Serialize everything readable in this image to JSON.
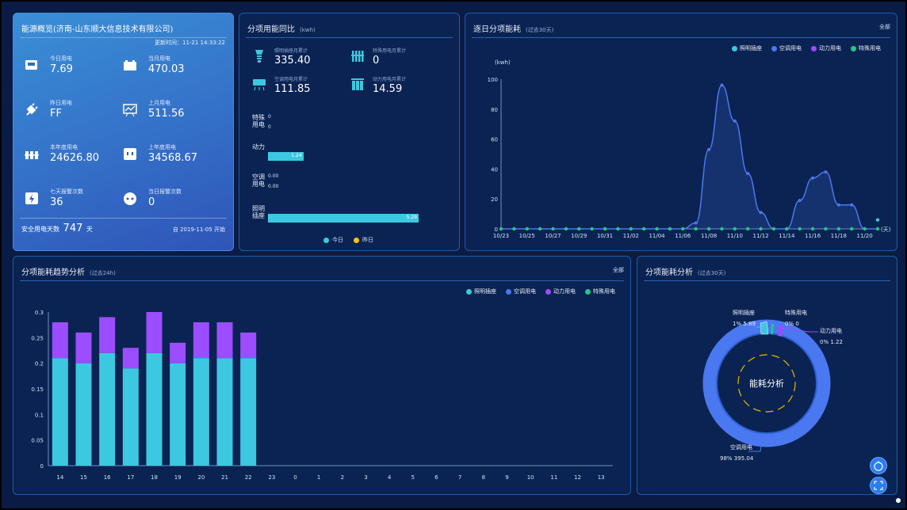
{
  "overview": {
    "title": "能源概览(济南-山东顺大信息技术有限公司)",
    "updated": "更新时间：11-21 14:33:22",
    "kpis": [
      {
        "label": "今日用电",
        "value": "7.69",
        "icon": "meter-icon"
      },
      {
        "label": "当月用电",
        "value": "470.03",
        "icon": "battery-icon"
      },
      {
        "label": "昨日用电",
        "value": "FF",
        "icon": "plug-icon"
      },
      {
        "label": "上月用电",
        "value": "511.56",
        "icon": "chart-board-icon"
      },
      {
        "label": "本年度用电",
        "value": "24626.80",
        "icon": "power-group-icon"
      },
      {
        "label": "上年度用电",
        "value": "34568.67",
        "icon": "socket-icon"
      },
      {
        "label": "七天报警次数",
        "value": "36",
        "icon": "alarm-lightning-icon"
      },
      {
        "label": "当日报警次数",
        "value": "0",
        "icon": "outlet-icon"
      }
    ],
    "safe_prefix": "安全用电天数",
    "safe_days": "747",
    "safe_unit": "天",
    "since": "自 2019-11-05 开始"
  },
  "monthly": {
    "title": "分项用能同比",
    "unit": "(kwh)",
    "metrics": [
      {
        "label": "照明插座月累计",
        "value": "335.40",
        "icon": "bulb-icon"
      },
      {
        "label": "特殊用电月累计",
        "value": "0",
        "icon": "special-icon"
      },
      {
        "label": "空调用电月累计",
        "value": "111.85",
        "icon": "aircon-icon"
      },
      {
        "label": "动力用电月累计",
        "value": "14.59",
        "icon": "motor-icon"
      }
    ],
    "categories": [
      "特殊用电",
      "动力",
      "空调用电",
      "照明插座"
    ],
    "today": [
      0,
      1.24,
      0.0,
      5.29
    ],
    "yesterday": [
      0,
      0,
      0.0,
      0
    ],
    "labels_today": [
      "0",
      "1.24",
      "0.00",
      "5.29"
    ],
    "labels_yest": [
      "0",
      "",
      "0.00",
      ""
    ],
    "legend": [
      "今日",
      "昨日"
    ],
    "colors": [
      "#3cc8e0",
      "#f5c518"
    ]
  },
  "daily": {
    "title": "逐日分项能耗",
    "sub": "(过去30天)",
    "all": "全部",
    "legend": [
      "照明插座",
      "空调用电",
      "动力用电",
      "特殊用电"
    ],
    "colors": [
      "#3cc8e0",
      "#4a78f0",
      "#9b4dff",
      "#22c78a"
    ],
    "ylabel": "(kwh)",
    "xunit": "(天)",
    "yticks": [
      "100",
      "80",
      "60",
      "40",
      "20",
      "0"
    ],
    "xticks": [
      "10/23",
      "10/25",
      "10/27",
      "10/29",
      "10/31",
      "11/02",
      "11/04",
      "11/06",
      "11/08",
      "11/10",
      "11/12",
      "11/14",
      "11/16",
      "11/18",
      "11/20"
    ],
    "chart_data": {
      "type": "line",
      "ylim": [
        0,
        100
      ],
      "x": [
        "10/23",
        "10/24",
        "10/25",
        "10/26",
        "10/27",
        "10/28",
        "10/29",
        "10/30",
        "10/31",
        "11/01",
        "11/02",
        "11/03",
        "11/04",
        "11/05",
        "11/06",
        "11/07",
        "11/08",
        "11/09",
        "11/10",
        "11/11",
        "11/12",
        "11/13",
        "11/14",
        "11/15",
        "11/16",
        "11/17",
        "11/18",
        "11/19",
        "11/20",
        "11/21"
      ],
      "series": [
        {
          "name": "空调用电",
          "values": [
            0,
            0,
            0,
            0,
            0,
            0,
            0,
            0,
            0,
            0,
            0,
            0,
            0,
            0,
            0,
            4,
            53,
            96,
            72,
            37,
            11,
            0,
            0,
            19,
            34,
            38,
            16,
            16,
            0,
            0
          ]
        },
        {
          "name": "照明插座",
          "values": [
            0,
            0,
            0,
            0,
            0,
            0,
            0,
            0,
            0,
            0,
            0,
            0,
            0,
            0,
            0,
            0,
            0,
            0,
            0,
            0,
            0,
            0,
            0,
            0,
            0,
            0,
            0,
            0,
            0,
            6
          ]
        },
        {
          "name": "特殊用电",
          "values": [
            0,
            0,
            0,
            0,
            0,
            0,
            0,
            0,
            0,
            0,
            0,
            0,
            0,
            0,
            0,
            0,
            0,
            0,
            0,
            0,
            0,
            0,
            0,
            0,
            0,
            0,
            0,
            0,
            0,
            0
          ]
        }
      ]
    }
  },
  "trend": {
    "title": "分项能耗趋势分析",
    "sub": "(过去24h)",
    "all": "全部",
    "legend": [
      "照明插座",
      "空调用电",
      "动力用电",
      "特殊用电"
    ],
    "colors": [
      "#3cc8e0",
      "#4a78f0",
      "#9b4dff",
      "#22c78a"
    ],
    "yticks": [
      "0.3",
      "0.25",
      "0.2",
      "0.15",
      "0.1",
      "0.05",
      "0"
    ],
    "chart_data": {
      "type": "bar",
      "ylim": [
        0,
        0.3
      ],
      "categories": [
        "14",
        "15",
        "16",
        "17",
        "18",
        "19",
        "20",
        "21",
        "22",
        "23",
        "0",
        "1",
        "2",
        "3",
        "4",
        "5",
        "6",
        "7",
        "8",
        "9",
        "10",
        "11",
        "12",
        "13"
      ],
      "series": [
        {
          "name": "照明插座",
          "values": [
            0.21,
            0.2,
            0.22,
            0.19,
            0.22,
            0.2,
            0.21,
            0.21,
            0.21,
            0,
            0,
            0,
            0,
            0,
            0,
            0,
            0,
            0,
            0,
            0,
            0,
            0,
            0,
            0
          ]
        },
        {
          "name": "动力用电",
          "values": [
            0.07,
            0.06,
            0.07,
            0.04,
            0.08,
            0.04,
            0.07,
            0.07,
            0.05,
            0,
            0,
            0,
            0,
            0,
            0,
            0,
            0,
            0,
            0,
            0,
            0,
            0,
            0,
            0
          ]
        }
      ]
    }
  },
  "donut": {
    "title": "分项能耗分析",
    "sub": "(过去30天)",
    "center": "能耗分析",
    "slices": [
      {
        "name": "照明插座",
        "pct": "1%",
        "value": "5.89",
        "color": "#3cc8e0"
      },
      {
        "name": "特殊用电",
        "pct": "0%",
        "value": "0",
        "color": "#22c78a"
      },
      {
        "name": "动力用电",
        "pct": "0%",
        "value": "1.22",
        "color": "#9b4dff"
      },
      {
        "name": "空调用电",
        "pct": "98%",
        "value": "395.04",
        "color": "#4a78f0"
      }
    ],
    "chart_data": {
      "type": "pie",
      "categories": [
        "照明插座",
        "特殊用电",
        "动力用电",
        "空调用电"
      ],
      "values": [
        5.89,
        0,
        1.22,
        395.04
      ]
    }
  }
}
